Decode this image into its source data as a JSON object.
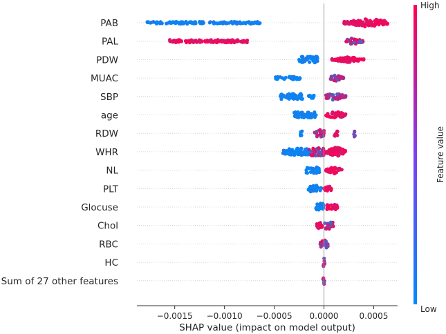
{
  "chart_data": {
    "type": "scatter",
    "subtype": "shap-beeswarm",
    "xlabel": "SHAP value (impact on model output)",
    "xlim": [
      -0.00188,
      0.00074
    ],
    "xticks": [
      {
        "value": -0.0015,
        "label": "−0.0015"
      },
      {
        "value": -0.001,
        "label": "−0.0010"
      },
      {
        "value": -0.0005,
        "label": "−0.0005"
      },
      {
        "value": 0.0,
        "label": "0.0000"
      },
      {
        "value": 0.0005,
        "label": "0.0005"
      }
    ],
    "features": [
      {
        "name": "PAB",
        "clusters": [
          {
            "from": -0.00178,
            "to": -0.00064,
            "color": "low",
            "height": 3
          },
          {
            "from": 0.0002,
            "to": 0.00064,
            "color": "high",
            "height": 13,
            "peak": 0.00045
          }
        ]
      },
      {
        "name": "PAL",
        "clusters": [
          {
            "from": -0.00155,
            "to": -0.00075,
            "color": "high",
            "height": 4
          },
          {
            "from": 0.00022,
            "to": 0.0004,
            "color": "mixed",
            "height": 11,
            "peak": 0.0003
          }
        ]
      },
      {
        "name": "PDW",
        "clusters": [
          {
            "from": -0.00025,
            "to": -6e-05,
            "color": "low",
            "height": 9
          },
          {
            "from": 8e-05,
            "to": 0.0004,
            "color": "high",
            "height": 8,
            "peak": 0.00025
          }
        ]
      },
      {
        "name": "MUAC",
        "clusters": [
          {
            "from": -0.0005,
            "to": -0.00024,
            "color": "low",
            "height": 4
          },
          {
            "from": 6e-05,
            "to": 0.0002,
            "color": "mixed",
            "height": 9,
            "peak": 0.00012
          }
        ]
      },
      {
        "name": "SBP",
        "clusters": [
          {
            "from": -0.00044,
            "to": -0.0002,
            "color": "low",
            "height": 8
          },
          {
            "from": -0.00016,
            "to": -0.0001,
            "color": "low",
            "height": 5
          },
          {
            "from": 2e-05,
            "to": 0.00024,
            "color": "mixed",
            "height": 11,
            "peak": 0.0001
          }
        ]
      },
      {
        "name": "age",
        "clusters": [
          {
            "from": -0.0003,
            "to": -8e-05,
            "color": "low",
            "height": 8
          },
          {
            "from": 2e-05,
            "to": 0.00022,
            "color": "high",
            "height": 11,
            "peak": 0.00012
          }
        ]
      },
      {
        "name": "RDW",
        "clusters": [
          {
            "from": -0.00024,
            "to": -0.00022,
            "color": "low",
            "height": 10
          },
          {
            "from": -0.0001,
            "to": 0.0,
            "color": "mixed",
            "height": 10
          },
          {
            "from": 0.0001,
            "to": 0.00014,
            "color": "high",
            "height": 8
          },
          {
            "from": 0.0003,
            "to": 0.00032,
            "color": "mixed",
            "height": 10
          }
        ]
      },
      {
        "name": "WHR",
        "clusters": [
          {
            "from": -0.00042,
            "to": -0.00015,
            "color": "low",
            "height": 10
          },
          {
            "from": -0.00015,
            "to": 0.0,
            "color": "mixed",
            "height": 12
          },
          {
            "from": 0.0,
            "to": 0.00022,
            "color": "high",
            "height": 14,
            "peak": 0.00012
          }
        ]
      },
      {
        "name": "NL",
        "clusters": [
          {
            "from": -0.00018,
            "to": -4e-05,
            "color": "low",
            "height": 9
          },
          {
            "from": 2e-05,
            "to": 0.00018,
            "color": "high",
            "height": 11,
            "peak": 0.0001
          }
        ]
      },
      {
        "name": "PLT",
        "clusters": [
          {
            "from": -0.00016,
            "to": -2e-05,
            "color": "low",
            "height": 9
          },
          {
            "from": 0.0,
            "to": 8e-05,
            "color": "high",
            "height": 11,
            "peak": 4e-05
          }
        ]
      },
      {
        "name": "Glocuse",
        "clusters": [
          {
            "from": -8e-05,
            "to": 0.0,
            "color": "low",
            "height": 11
          },
          {
            "from": 2e-05,
            "to": 0.00014,
            "color": "high",
            "height": 7
          }
        ]
      },
      {
        "name": "Chol",
        "clusters": [
          {
            "from": -8e-05,
            "to": -2e-05,
            "color": "high",
            "height": 8
          },
          {
            "from": 0.0,
            "to": 0.0001,
            "color": "mixed",
            "height": 10
          }
        ]
      },
      {
        "name": "RBC",
        "clusters": [
          {
            "from": -4e-05,
            "to": 4e-05,
            "color": "mixed",
            "height": 11
          }
        ]
      },
      {
        "name": "HC",
        "clusters": [
          {
            "from": -1e-05,
            "to": 1e-05,
            "color": "mixed",
            "height": 12
          }
        ]
      },
      {
        "name": "Sum of 27 other features",
        "clusters": [
          {
            "from": -1e-05,
            "to": 1e-05,
            "color": "mixed",
            "height": 12
          }
        ]
      }
    ],
    "colorbar": {
      "title": "Feature value",
      "high_label": "High",
      "low_label": "Low",
      "low_color": "#008afb",
      "high_color": "#ff0052"
    },
    "grid": false
  }
}
